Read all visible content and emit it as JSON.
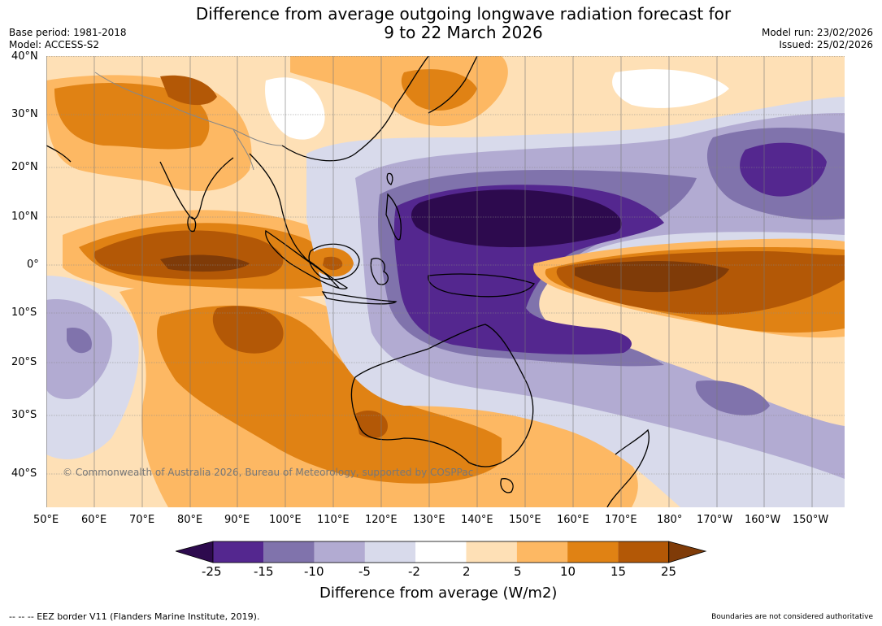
{
  "header": {
    "title_line1": "Difference from average outgoing longwave radiation forecast for",
    "title_line2": "9 to 22 March 2026",
    "base_period": "Base period: 1981-2018",
    "model": "Model: ACCESS-S2",
    "model_run": "Model run: 23/02/2026",
    "issued": "Issued: 25/02/2026"
  },
  "map": {
    "lat_labels": [
      "40°N",
      "30°N",
      "20°N",
      "10°N",
      "0°",
      "10°S",
      "20°S",
      "30°S",
      "40°S"
    ],
    "lon_labels": [
      "50°E",
      "60°E",
      "70°E",
      "80°E",
      "90°E",
      "100°E",
      "110°E",
      "120°E",
      "130°E",
      "140°E",
      "150°E",
      "160°E",
      "170°E",
      "180°",
      "170°W",
      "160°W",
      "150°W"
    ],
    "copyright": "© Commonwealth of Australia 2026, Bureau of Meteorology, supported by COSPPac",
    "palette": {
      "neg25": "#2d0a4e",
      "neg15": "#54278f",
      "neg10": "#8073ac",
      "neg5": "#b2abd2",
      "neg2": "#d8daeb",
      "zero": "#ffffff",
      "pos2": "#fee0b6",
      "pos5": "#fdb863",
      "pos10": "#e08214",
      "pos15": "#b35806",
      "pos25": "#7f3b08"
    }
  },
  "colorbar": {
    "ticks": [
      "-25",
      "-15",
      "-10",
      "-5",
      "-2",
      "2",
      "5",
      "10",
      "15",
      "25"
    ],
    "colors": [
      "#54278f",
      "#8073ac",
      "#b2abd2",
      "#d8daeb",
      "#ffffff",
      "#fee0b6",
      "#fdb863",
      "#e08214",
      "#b35806"
    ],
    "low_extend_color": "#2d0a4e",
    "high_extend_color": "#7f3b08",
    "label": "Difference from average (W/m2)"
  },
  "footer": {
    "eez_note": "--  --  -- EEZ border V11 (Flanders Marine Institute, 2019).",
    "boundaries_note": "Boundaries are not considered authoritative"
  }
}
